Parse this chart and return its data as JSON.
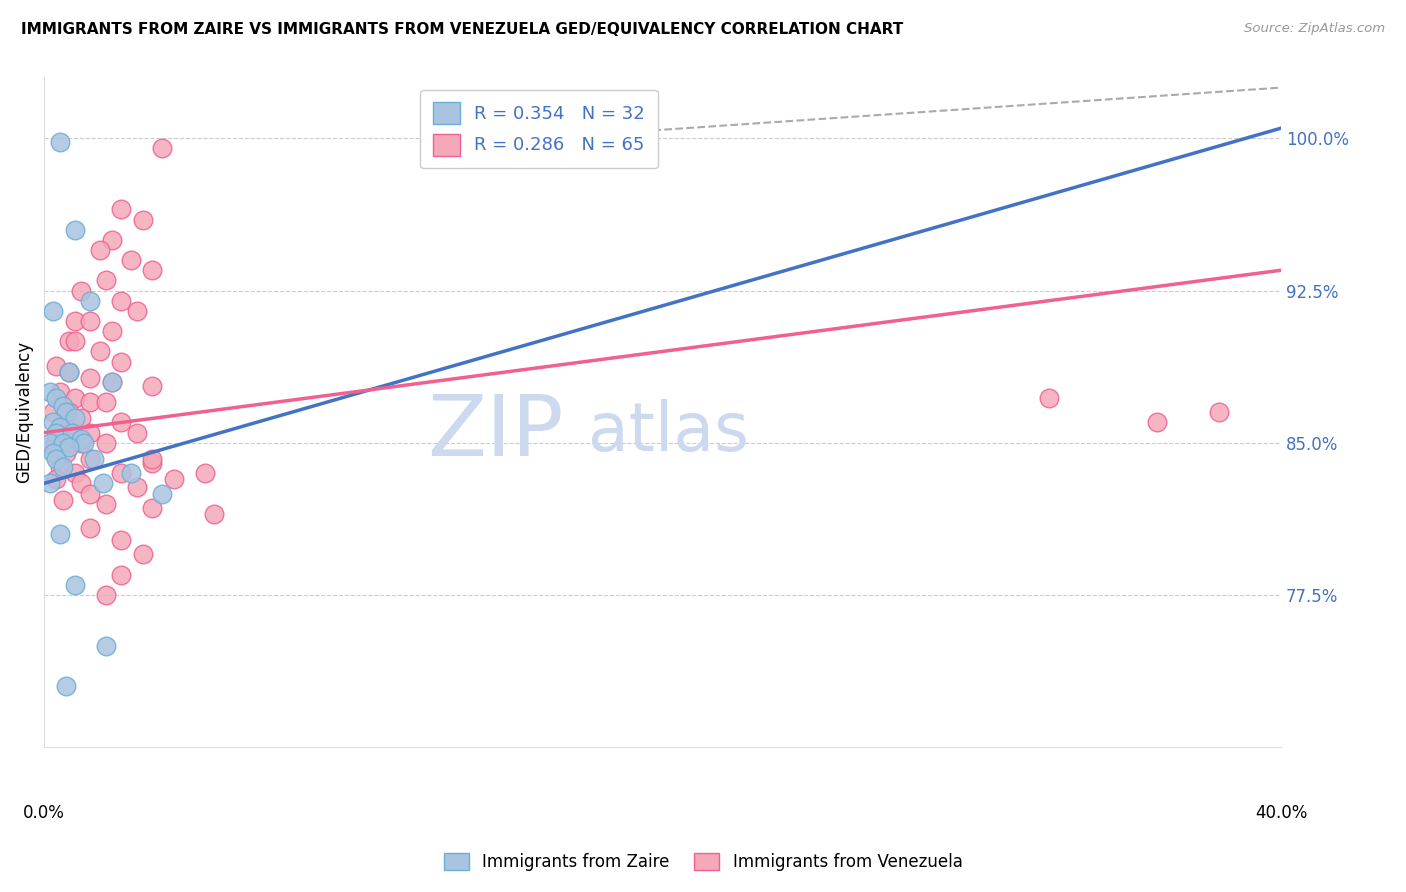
{
  "title": "IMMIGRANTS FROM ZAIRE VS IMMIGRANTS FROM VENEZUELA GED/EQUIVALENCY CORRELATION CHART",
  "source": "Source: ZipAtlas.com",
  "ylabel": "GED/Equivalency",
  "y_ticks": [
    "77.5%",
    "85.0%",
    "92.5%",
    "100.0%"
  ],
  "y_tick_vals": [
    77.5,
    85.0,
    92.5,
    100.0
  ],
  "x_min": 0.0,
  "x_max": 40.0,
  "y_min": 70.0,
  "y_max": 103.0,
  "zaire_color": "#a8c4e0",
  "venezuela_color": "#f4a8b8",
  "zaire_edge": "#6aaed6",
  "venezuela_edge": "#f06090",
  "zaire_line_color": "#4472c4",
  "venezuela_line_color": "#f06090",
  "zaire_label": "Immigrants from Zaire",
  "venezuela_label": "Immigrants from Venezuela",
  "zaire_points": [
    [
      0.5,
      99.8
    ],
    [
      1.0,
      95.5
    ],
    [
      1.5,
      92.0
    ],
    [
      0.3,
      91.5
    ],
    [
      0.8,
      88.5
    ],
    [
      2.2,
      88.0
    ],
    [
      0.2,
      87.5
    ],
    [
      0.4,
      87.2
    ],
    [
      0.6,
      86.8
    ],
    [
      0.7,
      86.5
    ],
    [
      1.0,
      86.2
    ],
    [
      0.3,
      86.0
    ],
    [
      0.5,
      85.8
    ],
    [
      0.4,
      85.5
    ],
    [
      0.9,
      85.5
    ],
    [
      1.2,
      85.2
    ],
    [
      0.2,
      85.0
    ],
    [
      0.6,
      85.0
    ],
    [
      1.3,
      85.0
    ],
    [
      0.8,
      84.8
    ],
    [
      0.3,
      84.5
    ],
    [
      0.4,
      84.2
    ],
    [
      1.6,
      84.2
    ],
    [
      0.6,
      83.8
    ],
    [
      2.8,
      83.5
    ],
    [
      0.2,
      83.0
    ],
    [
      1.9,
      83.0
    ],
    [
      3.8,
      82.5
    ],
    [
      0.5,
      80.5
    ],
    [
      1.0,
      78.0
    ],
    [
      2.0,
      75.0
    ],
    [
      0.7,
      73.0
    ]
  ],
  "venezuela_points": [
    [
      3.8,
      99.5
    ],
    [
      2.5,
      96.5
    ],
    [
      3.2,
      96.0
    ],
    [
      2.2,
      95.0
    ],
    [
      1.8,
      94.5
    ],
    [
      2.8,
      94.0
    ],
    [
      3.5,
      93.5
    ],
    [
      2.0,
      93.0
    ],
    [
      1.2,
      92.5
    ],
    [
      2.5,
      92.0
    ],
    [
      3.0,
      91.5
    ],
    [
      1.0,
      91.0
    ],
    [
      1.5,
      91.0
    ],
    [
      2.2,
      90.5
    ],
    [
      0.8,
      90.0
    ],
    [
      1.0,
      90.0
    ],
    [
      1.8,
      89.5
    ],
    [
      2.5,
      89.0
    ],
    [
      0.4,
      88.8
    ],
    [
      0.8,
      88.5
    ],
    [
      1.5,
      88.2
    ],
    [
      2.2,
      88.0
    ],
    [
      3.5,
      87.8
    ],
    [
      0.5,
      87.5
    ],
    [
      1.0,
      87.2
    ],
    [
      1.5,
      87.0
    ],
    [
      2.0,
      87.0
    ],
    [
      0.3,
      86.5
    ],
    [
      0.8,
      86.5
    ],
    [
      1.2,
      86.2
    ],
    [
      2.5,
      86.0
    ],
    [
      0.5,
      85.8
    ],
    [
      0.9,
      85.5
    ],
    [
      1.5,
      85.5
    ],
    [
      3.0,
      85.5
    ],
    [
      0.4,
      85.2
    ],
    [
      0.8,
      85.0
    ],
    [
      1.2,
      85.0
    ],
    [
      2.0,
      85.0
    ],
    [
      0.3,
      84.8
    ],
    [
      0.7,
      84.5
    ],
    [
      1.5,
      84.2
    ],
    [
      3.5,
      84.0
    ],
    [
      0.5,
      83.8
    ],
    [
      1.0,
      83.5
    ],
    [
      2.5,
      83.5
    ],
    [
      5.2,
      83.5
    ],
    [
      0.4,
      83.2
    ],
    [
      1.2,
      83.0
    ],
    [
      3.0,
      82.8
    ],
    [
      0.6,
      82.2
    ],
    [
      2.0,
      82.0
    ],
    [
      3.5,
      81.8
    ],
    [
      5.5,
      81.5
    ],
    [
      1.5,
      80.8
    ],
    [
      2.5,
      80.2
    ],
    [
      3.2,
      79.5
    ],
    [
      2.5,
      78.5
    ],
    [
      2.0,
      77.5
    ],
    [
      3.5,
      84.2
    ],
    [
      1.5,
      82.5
    ],
    [
      4.2,
      83.2
    ],
    [
      32.5,
      87.2
    ],
    [
      38.0,
      86.5
    ],
    [
      36.0,
      86.0
    ]
  ],
  "zaire_line": [
    0.0,
    83.0,
    40.0,
    100.5
  ],
  "venezuela_line": [
    0.0,
    85.5,
    40.0,
    93.5
  ],
  "dashed_line": [
    14.0,
    99.8,
    40.0,
    102.5
  ],
  "dashed_line_color": "#aaaaaa",
  "watermark_color": "#ccd9ee",
  "bg_color": "#ffffff",
  "grid_color": "#cccccc"
}
